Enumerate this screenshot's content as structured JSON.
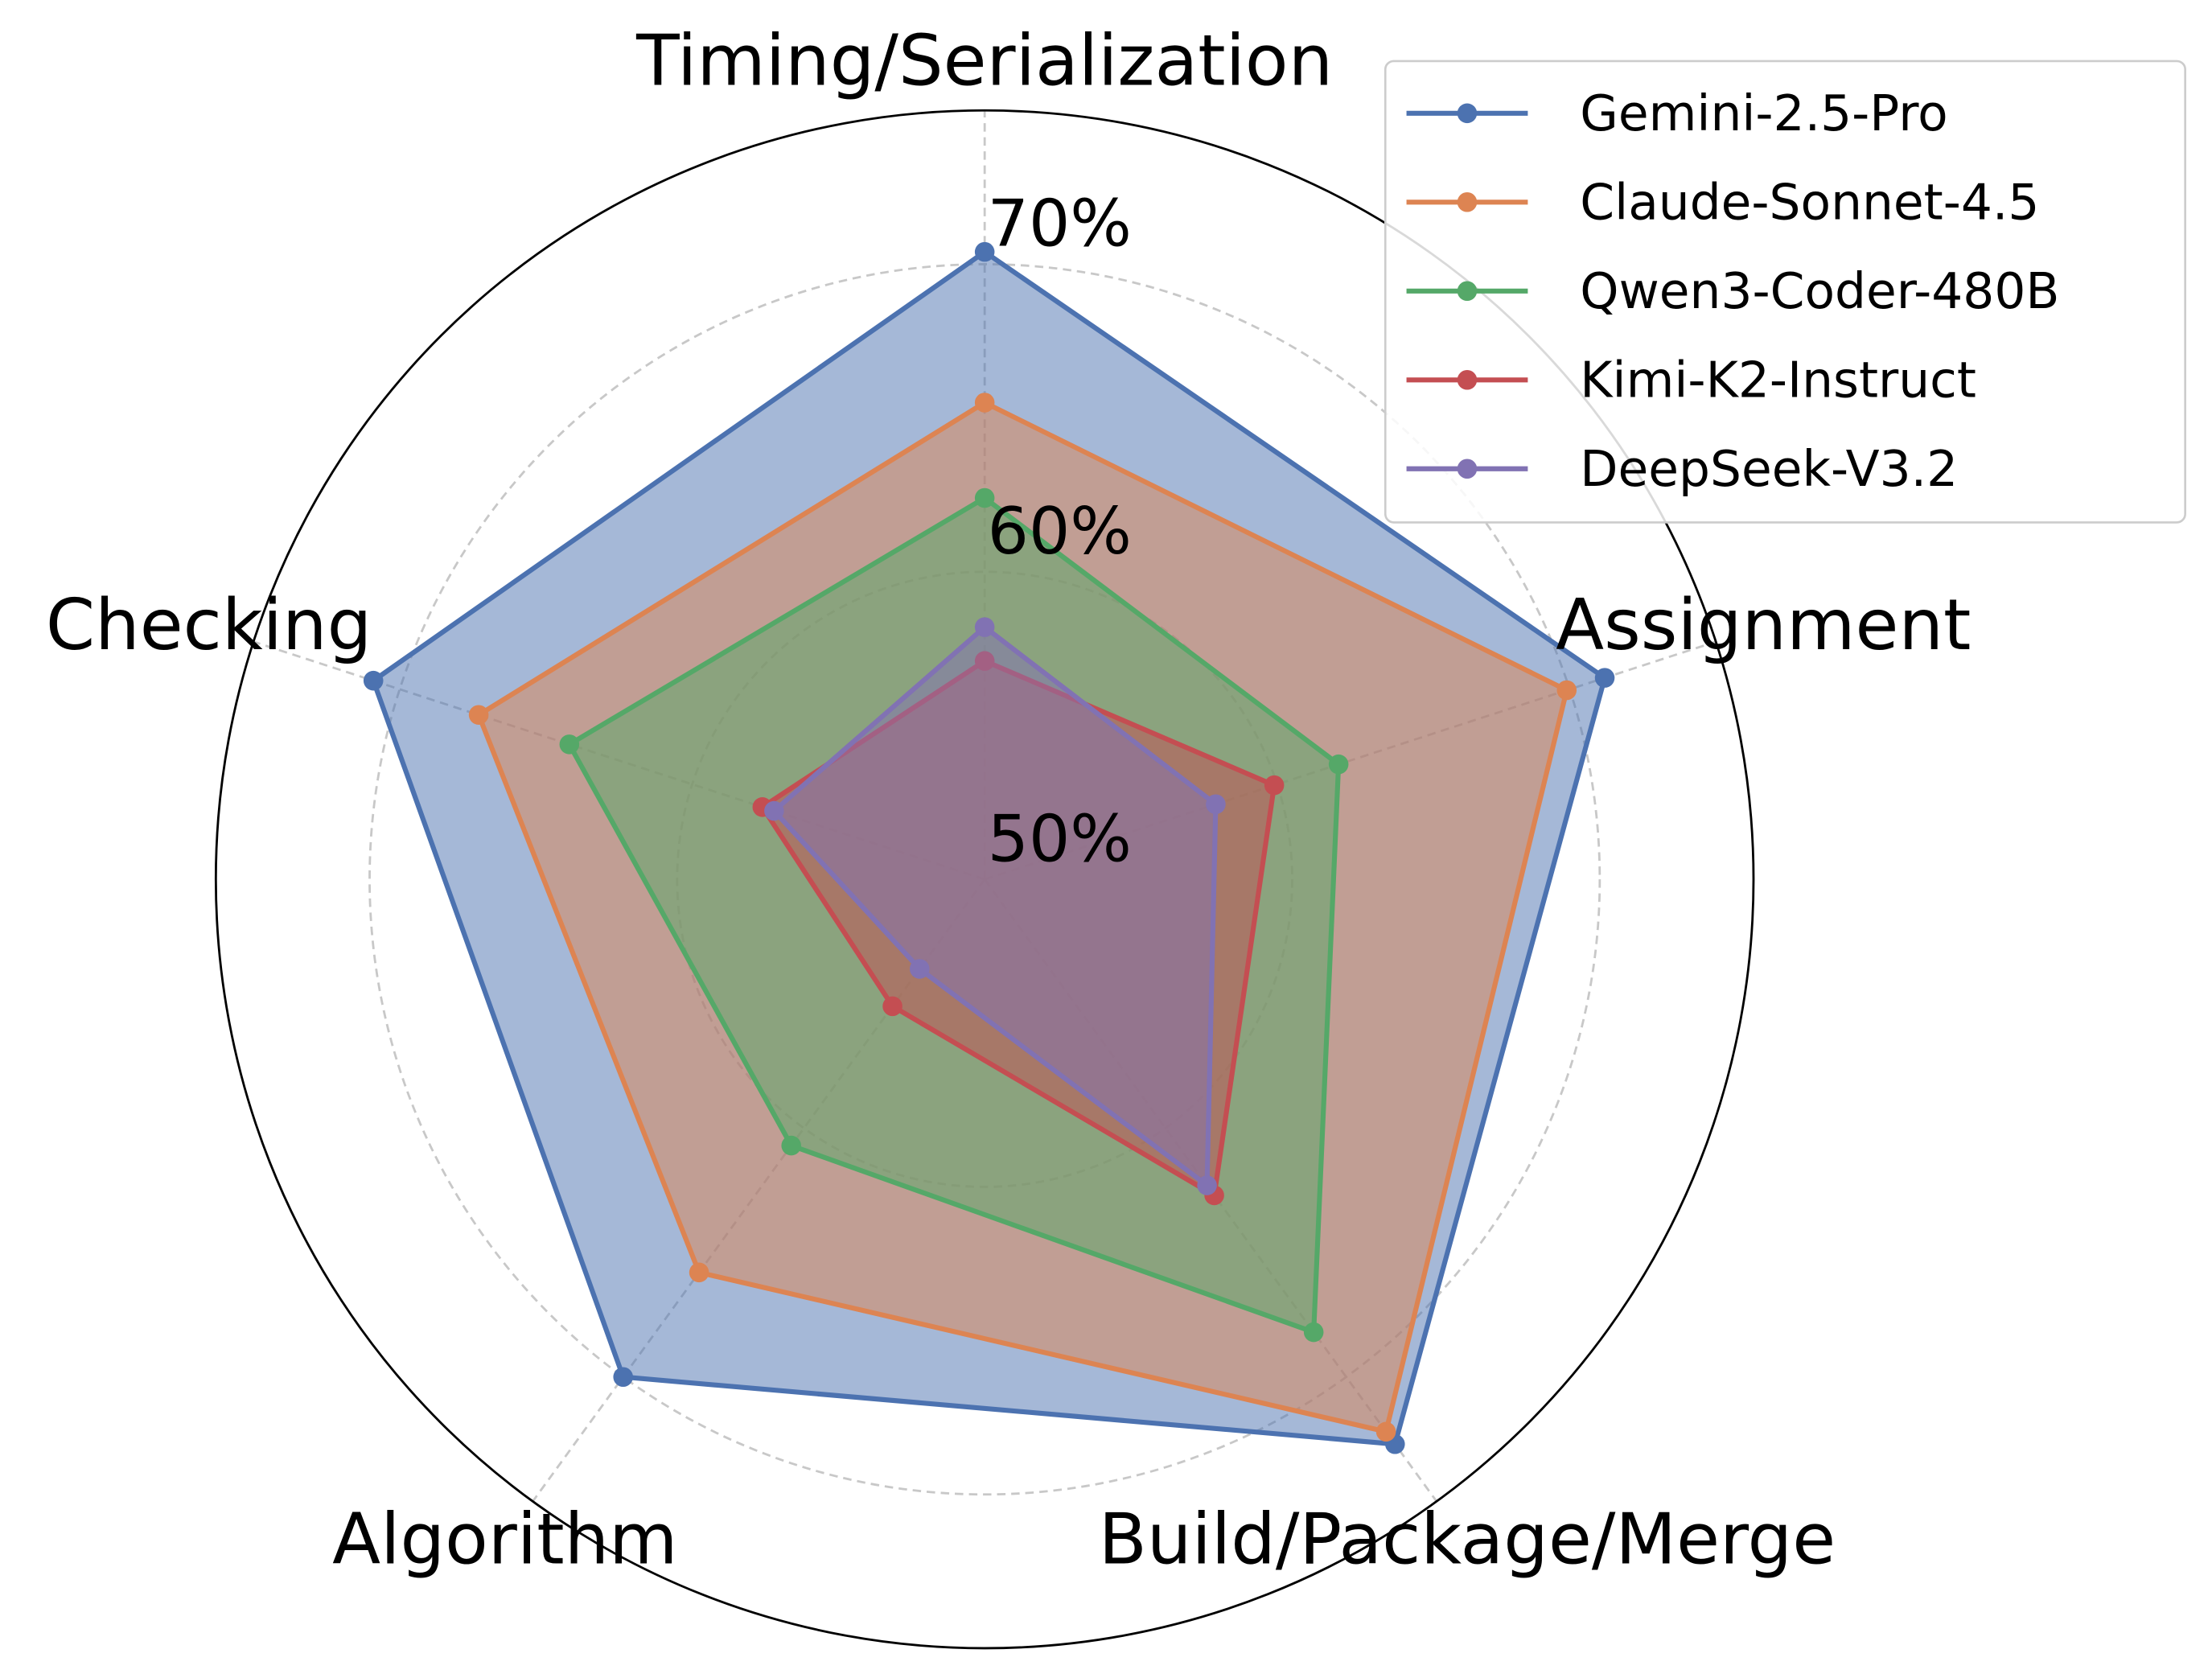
{
  "chart_data": {
    "type": "radar",
    "title": "",
    "axes": [
      "Timing/Serialization",
      "Assignment",
      "Build/Package/Merge",
      "Algorithm",
      "Checking"
    ],
    "rlim": [
      50,
      75
    ],
    "rticks": [
      50,
      60,
      70
    ],
    "rtick_labels": [
      "50%",
      "60%",
      "70%"
    ],
    "grid": true,
    "legend_position": "top-right",
    "series": [
      {
        "name": "Gemini-2.5-Pro",
        "color": "#4c72b0",
        "values": [
          70.4,
          71.2,
          72.7,
          70.0,
          70.9
        ]
      },
      {
        "name": "Claude-Sonnet-4.5",
        "color": "#dd8452",
        "values": [
          65.5,
          69.9,
          72.2,
          65.8,
          67.3
        ]
      },
      {
        "name": "Qwen3-Coder-480B",
        "color": "#55a868",
        "values": [
          62.4,
          62.1,
          68.2,
          60.7,
          64.2
        ]
      },
      {
        "name": "Kimi-K2-Instruct",
        "color": "#c44e52",
        "values": [
          57.1,
          59.9,
          62.7,
          55.1,
          57.6
        ]
      },
      {
        "name": "DeepSeek-V3.2",
        "color": "#8172b3",
        "values": [
          58.2,
          57.9,
          62.3,
          53.6,
          57.2
        ]
      }
    ]
  }
}
